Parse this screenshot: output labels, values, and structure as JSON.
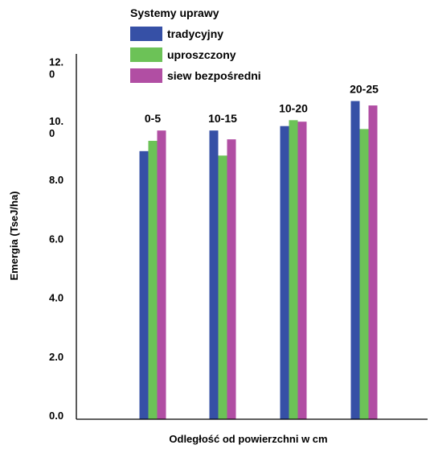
{
  "chart_data": {
    "type": "bar",
    "title": "",
    "xlabel": "Odległość od powierzchni w cm",
    "ylabel": "Emergia (TseJ/ha)",
    "ylim": [
      0,
      12.4
    ],
    "y_ticks": [
      {
        "value": 0,
        "lines": [
          "0.0"
        ]
      },
      {
        "value": 2,
        "lines": [
          "2.0"
        ]
      },
      {
        "value": 4,
        "lines": [
          "4.0"
        ]
      },
      {
        "value": 6,
        "lines": [
          "6.0"
        ]
      },
      {
        "value": 8,
        "lines": [
          "8.0"
        ]
      },
      {
        "value": 10,
        "lines": [
          "10.",
          "0"
        ]
      },
      {
        "value": 12,
        "lines": [
          "12.",
          "0"
        ]
      }
    ],
    "categories": [
      "0-5",
      "10-15",
      "10-20",
      "20-25"
    ],
    "legend": {
      "title": "Systemy uprawy",
      "placement": "top-left"
    },
    "grid": false,
    "series": [
      {
        "name": "tradycyjny",
        "color": "#3650a6",
        "values": [
          9.1,
          9.8,
          9.95,
          10.8
        ]
      },
      {
        "name": "uproszczony",
        "color": "#6cc257",
        "values": [
          9.45,
          8.95,
          10.15,
          9.85
        ]
      },
      {
        "name": "siew bezpośredni",
        "color": "#b14ea3",
        "values": [
          9.8,
          9.5,
          10.1,
          10.65
        ]
      }
    ]
  }
}
